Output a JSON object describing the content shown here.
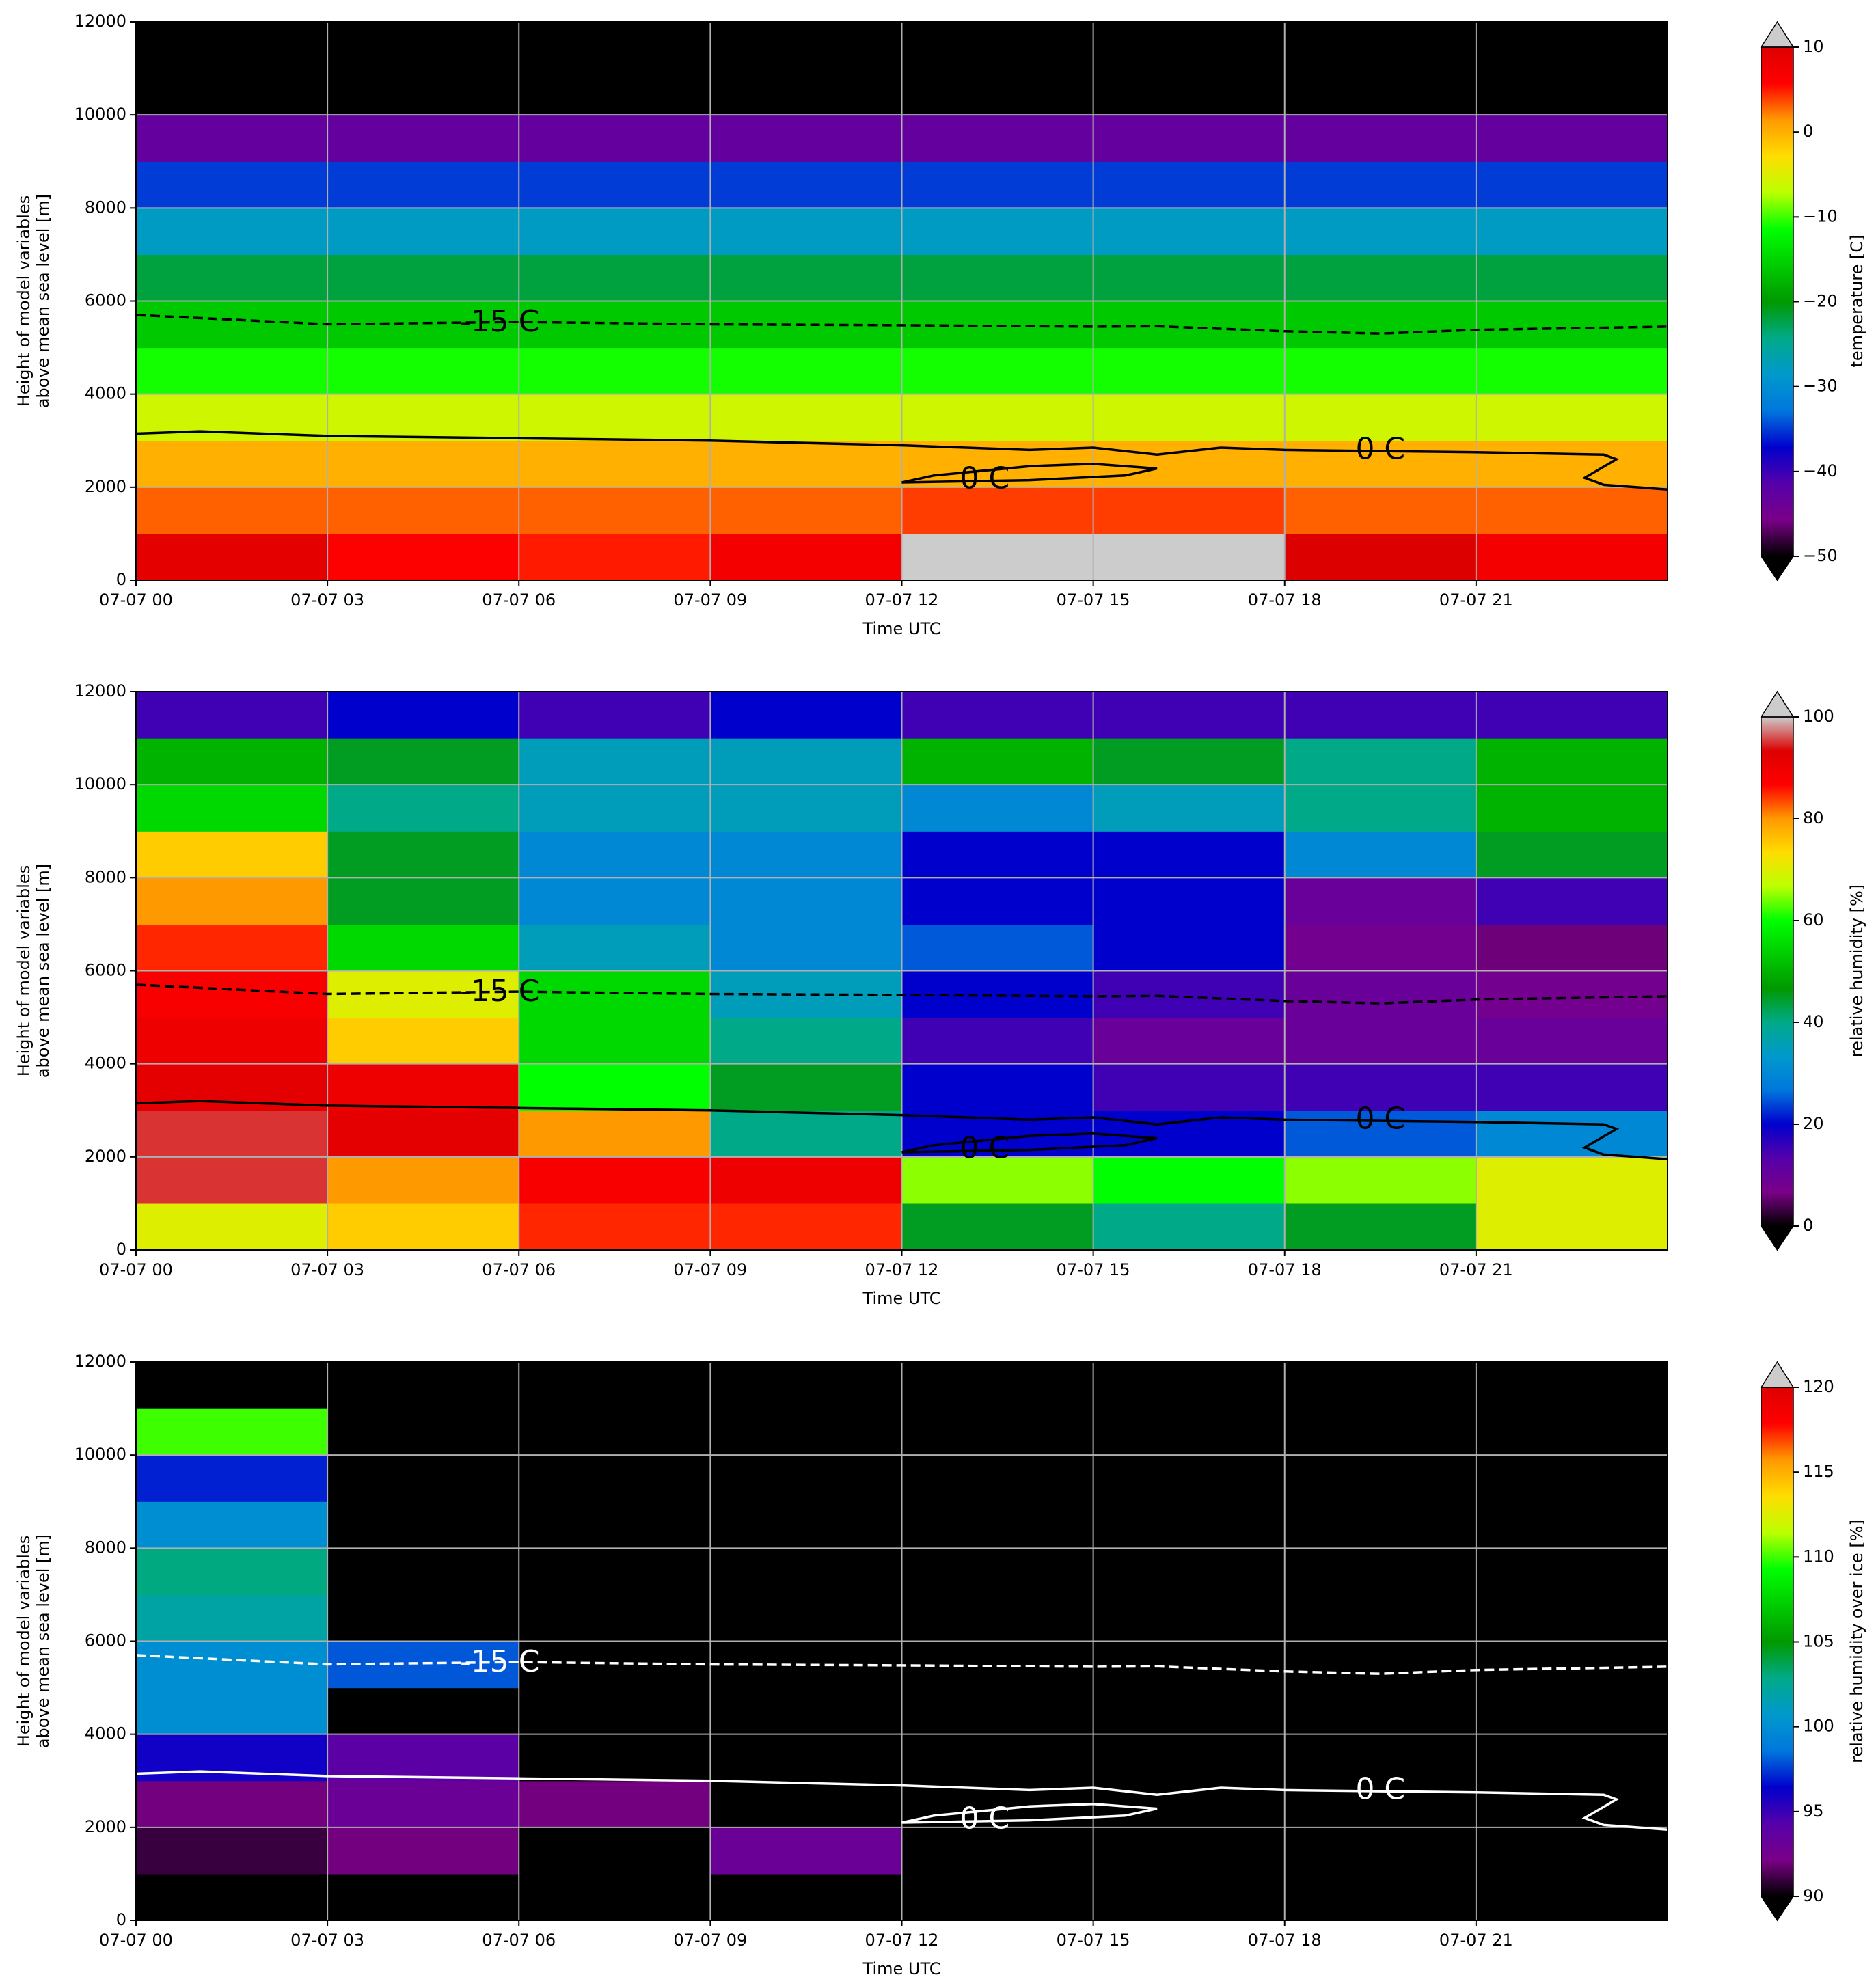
{
  "chart_data": [
    {
      "type": "heatmap",
      "xlabel": "Time UTC",
      "ylabel": [
        "Height of model variables",
        "above mean sea level [m]"
      ],
      "xlim": [
        0,
        24
      ],
      "ylim": [
        0,
        12000
      ],
      "xticks": [
        {
          "value": 0,
          "label": "07-07 00"
        },
        {
          "value": 3,
          "label": "07-07 03"
        },
        {
          "value": 6,
          "label": "07-07 06"
        },
        {
          "value": 9,
          "label": "07-07 09"
        },
        {
          "value": 12,
          "label": "07-07 12"
        },
        {
          "value": 15,
          "label": "07-07 15"
        },
        {
          "value": 18,
          "label": "07-07 18"
        },
        {
          "value": 21,
          "label": "07-07 21"
        }
      ],
      "yticks": [
        0,
        2000,
        4000,
        6000,
        8000,
        10000,
        12000
      ],
      "grid": true,
      "xbins": [
        0,
        3,
        6,
        9,
        12,
        15,
        18,
        21,
        24
      ],
      "ybins": [
        0,
        1000,
        2000,
        3000,
        4000,
        5000,
        6000,
        7000,
        8000,
        9000,
        10000,
        11000,
        12000
      ],
      "values": [
        [
          9,
          6,
          5,
          7,
          11,
          12,
          10,
          7
        ],
        [
          3,
          3,
          3,
          3,
          4,
          4,
          3,
          3
        ],
        [
          0,
          0,
          0,
          0,
          0,
          0,
          0,
          0
        ],
        [
          -6,
          -6,
          -6,
          -6,
          -6,
          -6,
          -6,
          -6
        ],
        [
          -11,
          -11,
          -11,
          -11,
          -11,
          -11,
          -11,
          -11
        ],
        [
          -16,
          -16,
          -16,
          -16,
          -16,
          -16,
          -16,
          -16
        ],
        [
          -22,
          -22,
          -22,
          -22,
          -22,
          -22,
          -22,
          -22
        ],
        [
          -28,
          -28,
          -28,
          -28,
          -28,
          -28,
          -28,
          -28
        ],
        [
          -35,
          -35,
          -35,
          -35,
          -35,
          -35,
          -35,
          -35
        ],
        [
          -43,
          -43,
          -43,
          -43,
          -43,
          -43,
          -43,
          -43
        ],
        [
          -55,
          -55,
          -55,
          -55,
          -55,
          -55,
          -55,
          -55
        ],
        [
          -56,
          -56,
          -56,
          -56,
          -56,
          -56,
          -56,
          -56
        ]
      ],
      "colorbar_label": "temperature [C]",
      "clim": [
        -50,
        10
      ],
      "cticks": [
        {
          "value": -50,
          "label": "−50"
        },
        {
          "value": -40,
          "label": "−40"
        },
        {
          "value": -30,
          "label": "−30"
        },
        {
          "value": -20,
          "label": "−20"
        },
        {
          "value": -10,
          "label": "−10"
        },
        0,
        10
      ],
      "colormap": [
        "#000000",
        "#7a0088",
        "#5500aa",
        "#0000cc",
        "#0077dd",
        "#0099cc",
        "#00aa88",
        "#009900",
        "#00cc00",
        "#00ff00",
        "#bbff00",
        "#ffdd00",
        "#ff9900",
        "#ff0000",
        "#dd0000"
      ],
      "under_color": "#000000",
      "over_color": "#cccccc",
      "contour_color": "#000000",
      "contours": [
        {
          "label": "-15 C",
          "dashed": true,
          "x": [
            0,
            3,
            6,
            9,
            12,
            15,
            16,
            18,
            19.5,
            21,
            24
          ],
          "y": [
            5700,
            5500,
            5550,
            5500,
            5480,
            5450,
            5460,
            5350,
            5300,
            5380,
            5450
          ]
        },
        {
          "label": "0 C",
          "dashed": false,
          "x": [
            0,
            1,
            3,
            6,
            9,
            12,
            14,
            15,
            16,
            17,
            18,
            21,
            23,
            23.2,
            22.7,
            23,
            24
          ],
          "y": [
            3150,
            3200,
            3100,
            3050,
            3000,
            2900,
            2800,
            2850,
            2700,
            2850,
            2800,
            2750,
            2700,
            2600,
            2200,
            2050,
            1950
          ]
        },
        {
          "label": "0 C",
          "dashed": false,
          "x": [
            12,
            12.5,
            14,
            15,
            16,
            15.5,
            14,
            12
          ],
          "y": [
            2100,
            2250,
            2450,
            2500,
            2400,
            2250,
            2150,
            2100
          ]
        }
      ]
    },
    {
      "type": "heatmap",
      "xlabel": "Time UTC",
      "ylabel": [
        "Height of model variables",
        "above mean sea level [m]"
      ],
      "xlim": [
        0,
        24
      ],
      "ylim": [
        0,
        12000
      ],
      "xticks": [
        {
          "value": 0,
          "label": "07-07 00"
        },
        {
          "value": 3,
          "label": "07-07 03"
        },
        {
          "value": 6,
          "label": "07-07 06"
        },
        {
          "value": 9,
          "label": "07-07 09"
        },
        {
          "value": 12,
          "label": "07-07 12"
        },
        {
          "value": 15,
          "label": "07-07 15"
        },
        {
          "value": 18,
          "label": "07-07 18"
        },
        {
          "value": 21,
          "label": "07-07 21"
        }
      ],
      "yticks": [
        0,
        2000,
        4000,
        6000,
        8000,
        10000,
        12000
      ],
      "grid": true,
      "xbins": [
        0,
        3,
        6,
        9,
        12,
        15,
        18,
        21,
        24
      ],
      "ybins": [
        0,
        1000,
        2000,
        3000,
        4000,
        5000,
        6000,
        7000,
        8000,
        9000,
        10000,
        11000,
        12000
      ],
      "values": [
        [
          70,
          75,
          85,
          85,
          45,
          40,
          45,
          70
        ],
        [
          95,
          80,
          88,
          90,
          65,
          60,
          65,
          70
        ],
        [
          95,
          92,
          80,
          40,
          20,
          20,
          25,
          30
        ],
        [
          92,
          90,
          60,
          45,
          20,
          15,
          15,
          15
        ],
        [
          90,
          75,
          55,
          40,
          15,
          10,
          10,
          10
        ],
        [
          88,
          70,
          55,
          35,
          20,
          15,
          10,
          8
        ],
        [
          85,
          55,
          35,
          30,
          25,
          20,
          8,
          6
        ],
        [
          80,
          45,
          30,
          30,
          20,
          20,
          10,
          15
        ],
        [
          75,
          45,
          30,
          30,
          20,
          20,
          30,
          45
        ],
        [
          55,
          40,
          35,
          35,
          30,
          35,
          40,
          50
        ],
        [
          50,
          45,
          35,
          35,
          50,
          45,
          40,
          50
        ],
        [
          15,
          20,
          15,
          20,
          15,
          15,
          15,
          15
        ]
      ],
      "colorbar_label": "relative humidity [%]",
      "clim": [
        0,
        100
      ],
      "cticks": [
        0,
        20,
        40,
        60,
        80,
        100
      ],
      "colormap": [
        "#000000",
        "#7a0088",
        "#5500aa",
        "#0000cc",
        "#0077dd",
        "#0099cc",
        "#00aa88",
        "#009900",
        "#00cc00",
        "#00ff00",
        "#bbff00",
        "#ffdd00",
        "#ff9900",
        "#ff0000",
        "#dd0000",
        "#cccccc"
      ],
      "under_color": "#000000",
      "over_color": "#cccccc",
      "contour_color": "#000000",
      "contours": [
        {
          "label": "-15 C",
          "dashed": true,
          "x": [
            0,
            3,
            6,
            9,
            12,
            15,
            16,
            18,
            19.5,
            21,
            24
          ],
          "y": [
            5700,
            5500,
            5550,
            5500,
            5480,
            5450,
            5460,
            5350,
            5300,
            5380,
            5450
          ]
        },
        {
          "label": "0 C",
          "dashed": false,
          "x": [
            0,
            1,
            3,
            6,
            9,
            12,
            14,
            15,
            16,
            17,
            18,
            21,
            23,
            23.2,
            22.7,
            23,
            24
          ],
          "y": [
            3150,
            3200,
            3100,
            3050,
            3000,
            2900,
            2800,
            2850,
            2700,
            2850,
            2800,
            2750,
            2700,
            2600,
            2200,
            2050,
            1950
          ]
        },
        {
          "label": "0 C",
          "dashed": false,
          "x": [
            12,
            12.5,
            14,
            15,
            16,
            15.5,
            14,
            12
          ],
          "y": [
            2100,
            2250,
            2450,
            2500,
            2400,
            2250,
            2150,
            2100
          ]
        }
      ]
    },
    {
      "type": "heatmap",
      "xlabel": "Time UTC",
      "ylabel": [
        "Height of model variables",
        "above mean sea level [m]"
      ],
      "xlim": [
        0,
        24
      ],
      "ylim": [
        0,
        12000
      ],
      "xticks": [
        {
          "value": 0,
          "label": "07-07 00"
        },
        {
          "value": 3,
          "label": "07-07 03"
        },
        {
          "value": 6,
          "label": "07-07 06"
        },
        {
          "value": 9,
          "label": "07-07 09"
        },
        {
          "value": 12,
          "label": "07-07 12"
        },
        {
          "value": 15,
          "label": "07-07 15"
        },
        {
          "value": 18,
          "label": "07-07 18"
        },
        {
          "value": 21,
          "label": "07-07 21"
        }
      ],
      "yticks": [
        0,
        2000,
        4000,
        6000,
        8000,
        10000,
        12000
      ],
      "grid": true,
      "xbins": [
        0,
        3,
        6,
        9,
        12,
        15,
        18,
        21,
        24
      ],
      "ybins": [
        0,
        1000,
        2000,
        3000,
        4000,
        5000,
        6000,
        7000,
        8000,
        9000,
        10000,
        11000,
        12000
      ],
      "values": [
        [
          80,
          80,
          80,
          80,
          80,
          80,
          80,
          80
        ],
        [
          91,
          92,
          80,
          93,
          80,
          80,
          80,
          80
        ],
        [
          92,
          93,
          92,
          80,
          80,
          80,
          80,
          80
        ],
        [
          96,
          94,
          80,
          80,
          80,
          80,
          80,
          80
        ],
        [
          100,
          80,
          80,
          80,
          80,
          80,
          80,
          80
        ],
        [
          100,
          98,
          80,
          80,
          80,
          80,
          80,
          80
        ],
        [
          102,
          80,
          80,
          80,
          80,
          80,
          80,
          80
        ],
        [
          103,
          80,
          80,
          80,
          80,
          80,
          80,
          80
        ],
        [
          100,
          80,
          80,
          80,
          80,
          80,
          80,
          80
        ],
        [
          97,
          80,
          80,
          80,
          80,
          80,
          80,
          80
        ],
        [
          110,
          80,
          80,
          80,
          80,
          80,
          80,
          80
        ],
        [
          80,
          80,
          80,
          80,
          80,
          80,
          80,
          80
        ]
      ],
      "colorbar_label": "relative humidity over ice [%]",
      "clim": [
        90,
        120
      ],
      "cticks": [
        90,
        95,
        100,
        105,
        110,
        115,
        120
      ],
      "colormap": [
        "#000000",
        "#7a0088",
        "#5500aa",
        "#0000cc",
        "#0077dd",
        "#0099cc",
        "#00aa88",
        "#009900",
        "#00cc00",
        "#00ff00",
        "#bbff00",
        "#ffdd00",
        "#ff9900",
        "#ff0000",
        "#dd0000"
      ],
      "under_color": "#000000",
      "over_color": "#cccccc",
      "contour_color": "#ffffff",
      "contours": [
        {
          "label": "-15 C",
          "dashed": true,
          "x": [
            0,
            3,
            6,
            9,
            12,
            15,
            16,
            18,
            19.5,
            21,
            24
          ],
          "y": [
            5700,
            5500,
            5550,
            5500,
            5480,
            5450,
            5460,
            5350,
            5300,
            5380,
            5450
          ]
        },
        {
          "label": "0 C",
          "dashed": false,
          "x": [
            0,
            1,
            3,
            6,
            9,
            12,
            14,
            15,
            16,
            17,
            18,
            21,
            23,
            23.2,
            22.7,
            23,
            24
          ],
          "y": [
            3150,
            3200,
            3100,
            3050,
            3000,
            2900,
            2800,
            2850,
            2700,
            2850,
            2800,
            2750,
            2700,
            2600,
            2200,
            2050,
            1950
          ]
        },
        {
          "label": "0 C",
          "dashed": false,
          "x": [
            12,
            12.5,
            14,
            15,
            16,
            15.5,
            14,
            12
          ],
          "y": [
            2100,
            2250,
            2450,
            2500,
            2400,
            2250,
            2150,
            2100
          ]
        }
      ]
    }
  ]
}
